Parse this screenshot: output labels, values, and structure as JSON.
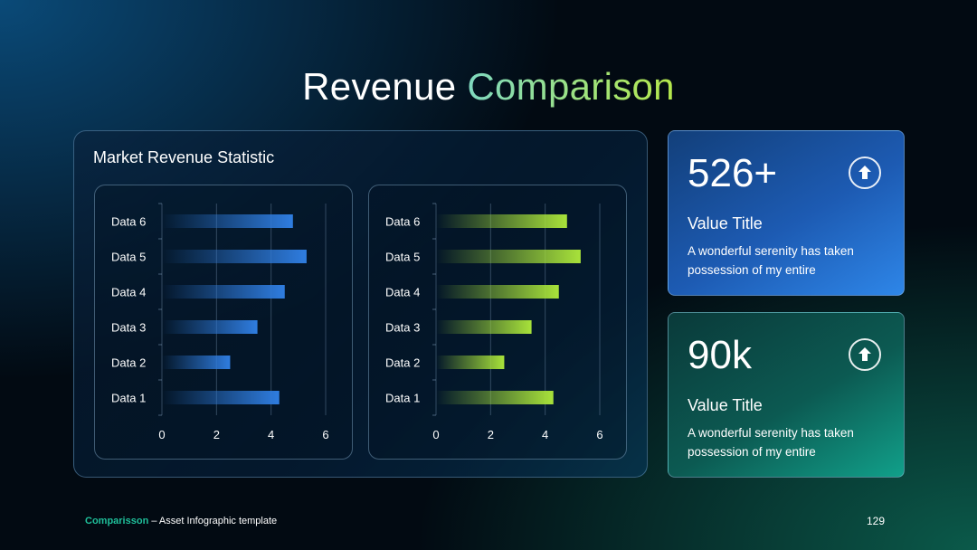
{
  "title": {
    "part1": "Revenue",
    "part2": "Comparison"
  },
  "panel": {
    "title": "Market Revenue Statistic"
  },
  "chart_data": [
    {
      "type": "bar",
      "orientation": "horizontal",
      "categories": [
        "Data 1",
        "Data 2",
        "Data 3",
        "Data 4",
        "Data 5",
        "Data 6"
      ],
      "values": [
        4.3,
        2.5,
        3.5,
        4.5,
        5.3,
        4.8
      ],
      "xlim": [
        0,
        6
      ],
      "xticks": [
        "0",
        "2",
        "4",
        "6"
      ],
      "grid": true,
      "colors": [
        "#0b2f5c",
        "#2f7de0"
      ]
    },
    {
      "type": "bar",
      "orientation": "horizontal",
      "categories": [
        "Data 1",
        "Data 2",
        "Data 3",
        "Data 4",
        "Data 5",
        "Data 6"
      ],
      "values": [
        4.3,
        2.5,
        3.5,
        4.5,
        5.3,
        4.8
      ],
      "xlim": [
        0,
        6
      ],
      "xticks": [
        "0",
        "2",
        "4",
        "6"
      ],
      "grid": true,
      "colors": [
        "#10402a",
        "#a8e23a"
      ]
    }
  ],
  "cards": [
    {
      "value": "526+",
      "title": "Value Title",
      "description": "A wonderful serenity has taken possession of my entire",
      "icon": "arrow-up-circle-icon"
    },
    {
      "value": "90k",
      "title": "Value Title",
      "description": "A wonderful serenity has taken possession of my entire",
      "icon": "arrow-up-circle-icon"
    }
  ],
  "footer": {
    "brand": "Comparisson",
    "text": " – Asset Infographic  template"
  },
  "page_number": "129"
}
